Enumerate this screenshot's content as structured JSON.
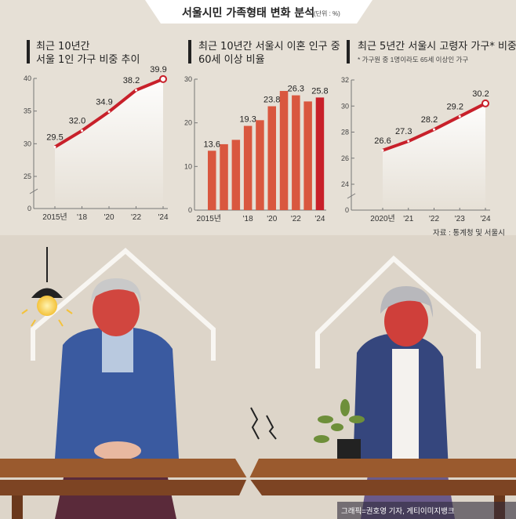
{
  "header": {
    "title": "서울시민 가족형태 변화 분석",
    "unit": "(단위 : %)"
  },
  "source": "자료 : 통계청 및 서울시",
  "credit": "그래픽=권호영 기자, 게티이미지뱅크",
  "colors": {
    "line": "#c8202a",
    "bar": "#d9573f",
    "bar_highlight": "#c8202a",
    "background": "#e6e0d6"
  },
  "chart_data": [
    {
      "type": "line",
      "title_lines": [
        "최근 10년간",
        "서울 1인 가구 비중 추이"
      ],
      "x": [
        "2015년",
        "'18",
        "'20",
        "'22",
        "'24"
      ],
      "values": [
        29.5,
        32.0,
        34.9,
        38.2,
        39.9
      ],
      "value_labels": [
        "29.5",
        "32.0",
        "34.9",
        "38.2",
        "39.9"
      ],
      "yticks": [
        "0",
        "25",
        "30",
        "35",
        "40"
      ],
      "ylim": [
        25,
        40
      ],
      "axis_break": true,
      "grid": false
    },
    {
      "type": "bar",
      "title_lines": [
        "최근 10년간 서울시 이혼 인구 중",
        "60세 이상 비율"
      ],
      "categories": [
        "2015",
        "2016",
        "2017",
        "2018",
        "2019",
        "2020",
        "2021",
        "2022",
        "2023",
        "2024"
      ],
      "xtick_labels": [
        "2015년",
        "'18",
        "'20",
        "'22",
        "'24"
      ],
      "values": [
        13.6,
        15.1,
        16.1,
        19.3,
        20.6,
        23.8,
        27.3,
        26.3,
        24.9,
        25.8
      ],
      "value_labels": {
        "0": "13.6",
        "3": "19.3",
        "5": "23.8",
        "7": "26.3",
        "9": "25.8"
      },
      "yticks": [
        "0",
        "10",
        "20",
        "30"
      ],
      "ylim": [
        0,
        30
      ],
      "grid": false
    },
    {
      "type": "line",
      "title_lines": [
        "최근 5년간 서울시 고령자 가구* 비중"
      ],
      "footnote": "* 가구원 중 1명이라도 65세 이상인 가구",
      "x": [
        "2020년",
        "'21",
        "'22",
        "'23",
        "'24"
      ],
      "values": [
        26.6,
        27.3,
        28.2,
        29.2,
        30.2
      ],
      "value_labels": [
        "26.6",
        "27.3",
        "28.2",
        "29.2",
        "30.2"
      ],
      "yticks": [
        "0",
        "24",
        "26",
        "28",
        "30",
        "32"
      ],
      "ylim": [
        24,
        32
      ],
      "axis_break": true,
      "grid": false
    }
  ]
}
